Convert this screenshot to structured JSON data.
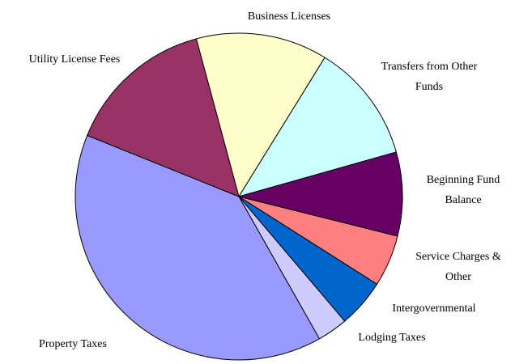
{
  "chart_data": {
    "type": "pie",
    "categories": [
      "Business Licenses",
      "Transfers from Other Funds",
      "Beginning Fund Balance",
      "Service Charges & Other",
      "Intergovernmental",
      "Lodging Taxes",
      "Property Taxes",
      "Utility License Fees"
    ],
    "values": [
      13.0,
      11.8,
      8.3,
      5.1,
      4.8,
      3.0,
      39.3,
      14.7
    ],
    "colors": [
      "#ffffcc",
      "#ccffff",
      "#660066",
      "#ff8080",
      "#0066cc",
      "#ccccff",
      "#9999ff",
      "#993366"
    ]
  }
}
